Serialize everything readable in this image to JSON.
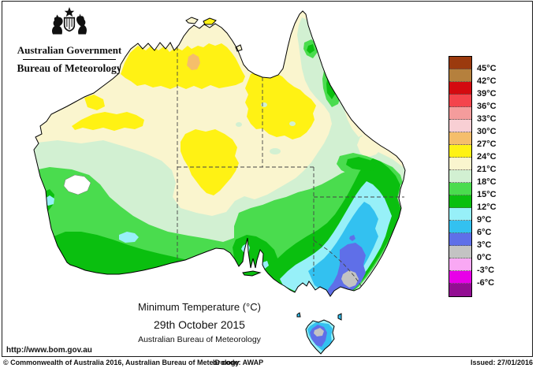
{
  "header": {
    "government": "Australian Government",
    "bureau": "Bureau of Meteorology"
  },
  "titles": {
    "map_title": "Minimum Temperature (°C)",
    "map_date": "29th October 2015",
    "map_org": "Australian Bureau of Meteorology"
  },
  "url": "http://www.bom.gov.au",
  "footer": {
    "copyright": "© Commonwealth of Australia 2016, Australian Bureau of Meteorology",
    "id_code": "ID code: AWAP",
    "issued": "Issued: 27/01/2016"
  },
  "legend": {
    "entries": [
      {
        "color": "#9B3A0E",
        "label": "45°C"
      },
      {
        "color": "#B5803D",
        "label": "42°C"
      },
      {
        "color": "#D40A10",
        "label": "39°C"
      },
      {
        "color": "#F4444C",
        "label": "36°C"
      },
      {
        "color": "#F49C9C",
        "label": "33°C"
      },
      {
        "color": "#F8CFD4",
        "label": "30°C"
      },
      {
        "color": "#F5BE6B",
        "label": "27°C"
      },
      {
        "color": "#FFF214",
        "label": "24°C"
      },
      {
        "color": "#FAF5CE",
        "label": "21°C"
      },
      {
        "color": "#D2F0D2",
        "label": "18°C"
      },
      {
        "color": "#4ADC4E",
        "label": "15°C"
      },
      {
        "color": "#0ABF0F",
        "label": "12°C"
      },
      {
        "color": "#97F0F8",
        "label": "9°C"
      },
      {
        "color": "#33C1F0",
        "label": "6°C"
      },
      {
        "color": "#5F6FE8",
        "label": "3°C"
      },
      {
        "color": "#C3C3C3",
        "label": "0°C"
      },
      {
        "color": "#F9A8F4",
        "label": "-3°C"
      },
      {
        "color": "#E800E8",
        "label": "-6°C"
      },
      {
        "color": "#930E93",
        "label": ""
      }
    ]
  },
  "map": {
    "band_colors": {
      "cream": "#FAF5CE",
      "yellow": "#FFF214",
      "orange": "#F5BE6B",
      "mint": "#D2F0D2",
      "lgreen": "#4ADC4E",
      "green": "#0ABF0F",
      "cyan": "#97F0F8",
      "sky": "#33C1F0",
      "peri": "#5F6FE8",
      "gray": "#C3C3C3",
      "lake": "#FFFFFF"
    }
  }
}
